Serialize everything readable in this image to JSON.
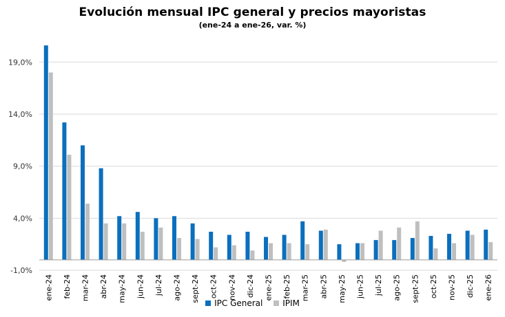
{
  "chart_data": {
    "type": "bar",
    "title": "Evolución mensual IPC general y precios mayoristas",
    "subtitle": "(ene-24 a ene-26, var. %)",
    "xlabel": "",
    "ylabel": "",
    "categories": [
      "ene-24",
      "feb-24",
      "mar-24",
      "abr-24",
      "may-24",
      "jun-24",
      "jul-24",
      "ago-24",
      "sept-24",
      "oct-24",
      "nov-24",
      "dic-24",
      "ene-25",
      "feb-25",
      "mar-25",
      "abr-25",
      "may-25",
      "jun-25",
      "jul-25",
      "ago-25",
      "sept-25",
      "oct-25",
      "nov-25",
      "dic-25",
      "ene-26"
    ],
    "series": [
      {
        "name": "IPC General",
        "color": "#0b6fbd",
        "values": [
          20.6,
          13.2,
          11.0,
          8.8,
          4.2,
          4.6,
          4.0,
          4.2,
          3.5,
          2.7,
          2.4,
          2.7,
          2.2,
          2.4,
          3.7,
          2.8,
          1.5,
          1.6,
          1.9,
          1.9,
          2.1,
          2.3,
          2.5,
          2.8,
          2.9
        ]
      },
      {
        "name": "IPIM",
        "color": "#bfbfbf",
        "values": [
          18.0,
          10.1,
          5.4,
          3.5,
          3.5,
          2.7,
          3.1,
          2.1,
          2.0,
          1.2,
          1.4,
          0.9,
          1.6,
          1.6,
          1.5,
          2.9,
          -0.2,
          1.6,
          2.8,
          3.1,
          3.7,
          1.1,
          1.6,
          2.4,
          1.7
        ]
      }
    ],
    "yticks": [
      "-1,0%",
      "4,0%",
      "9,0%",
      "14,0%",
      "19,0%"
    ],
    "ytick_values": [
      -1,
      4,
      9,
      14,
      19
    ],
    "ylim": [
      -1,
      21
    ],
    "grid": true,
    "legend_position": "bottom"
  }
}
